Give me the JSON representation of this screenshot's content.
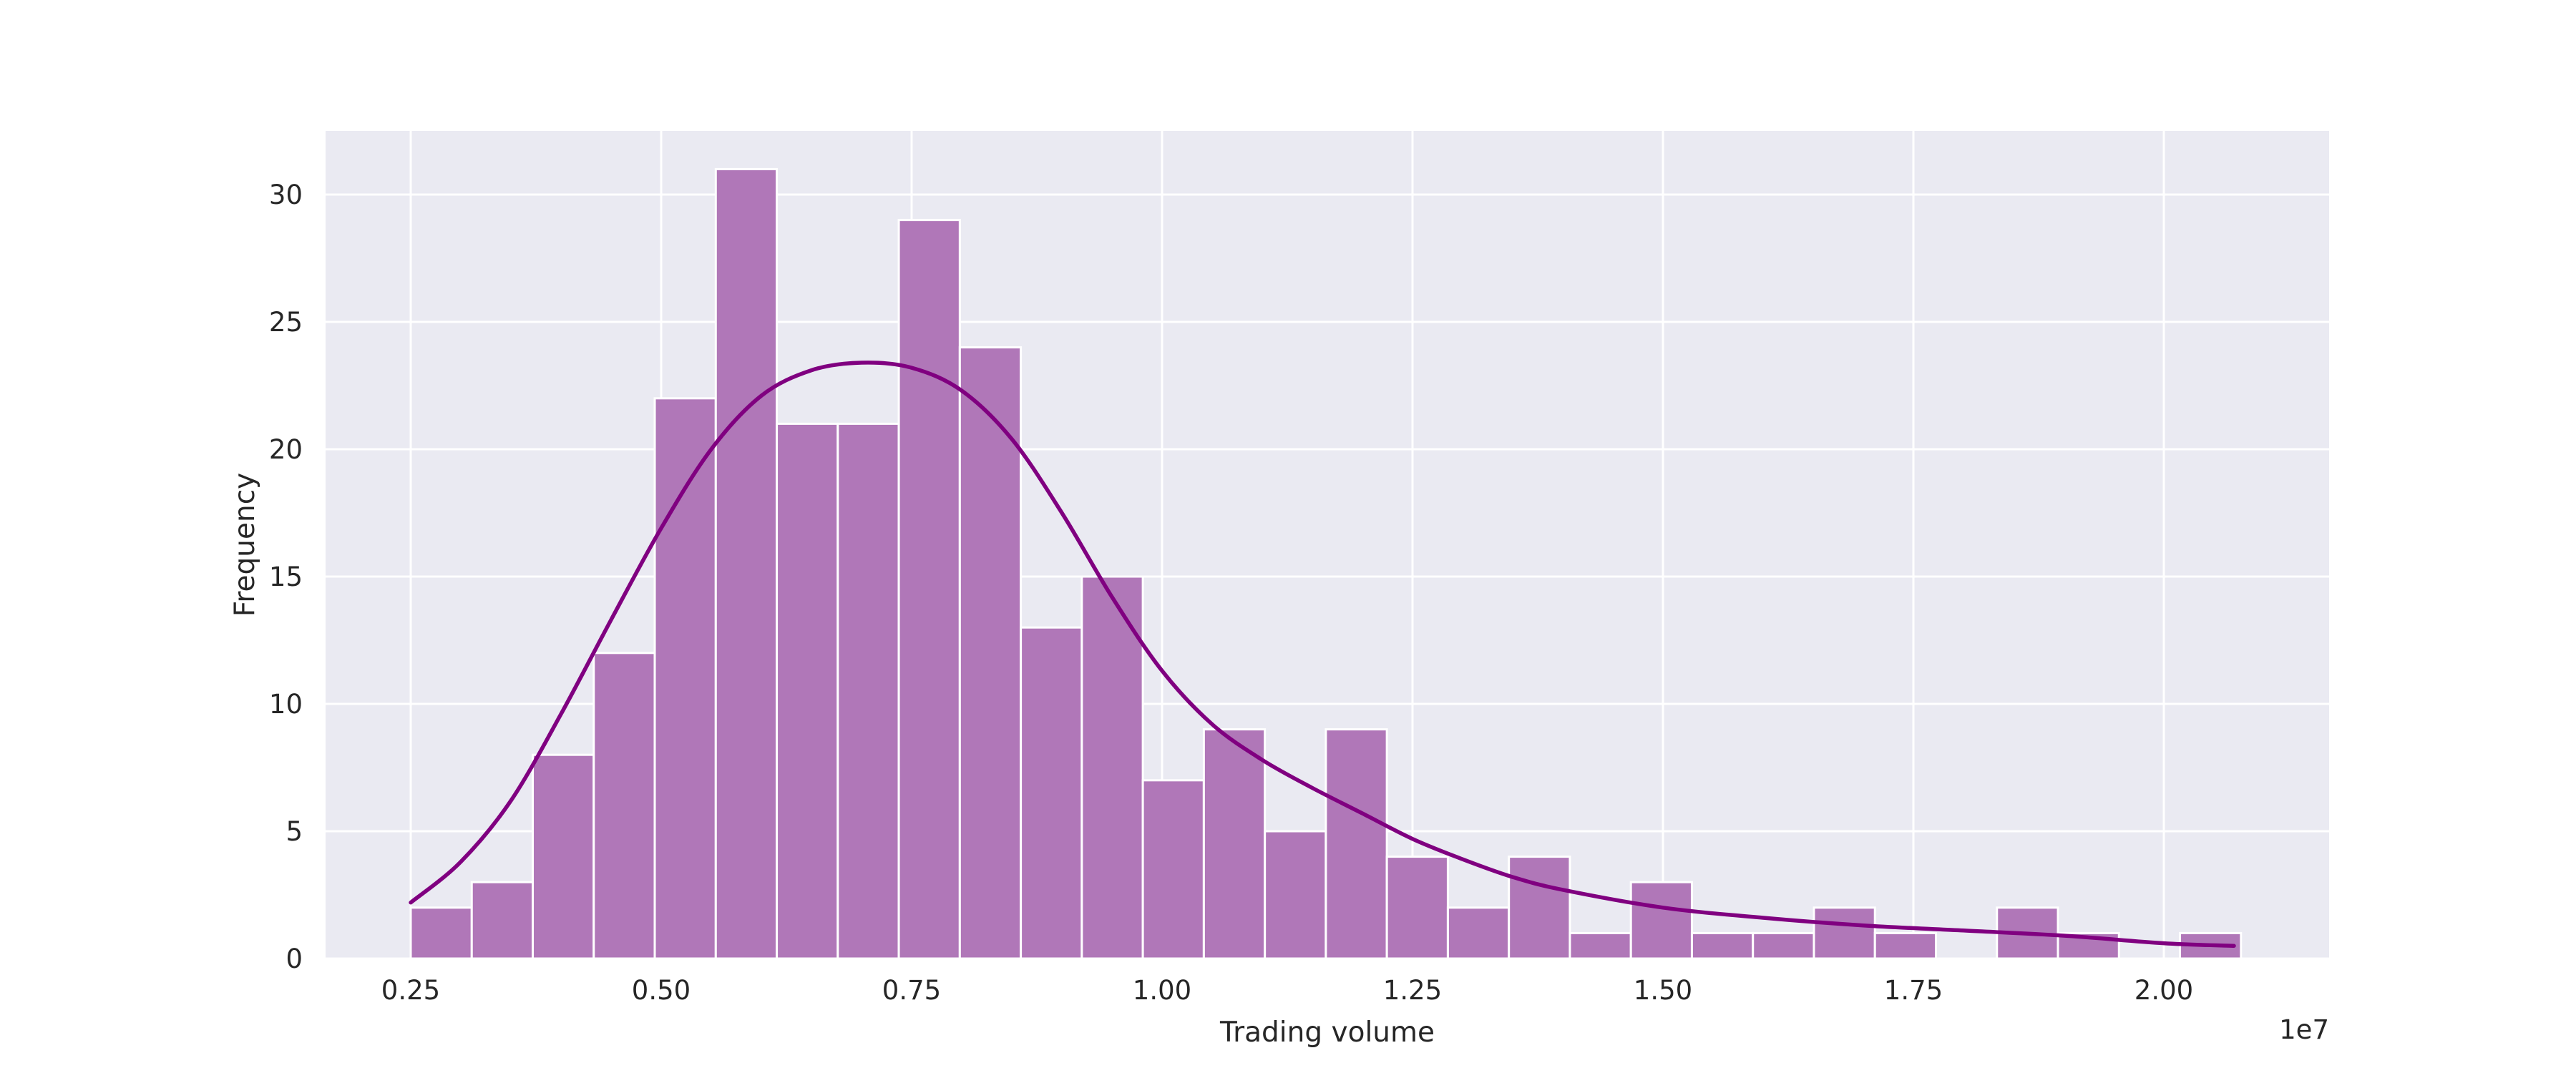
{
  "chart_data": {
    "type": "bar",
    "xlabel": "Trading volume",
    "ylabel": "Frequency",
    "x_offset_label": "1e7",
    "x_unit_multiplier": 10000000,
    "xlim": [
      0.165,
      2.165
    ],
    "ylim": [
      0,
      32.5
    ],
    "x_ticks": [
      {
        "value": 0.25,
        "label": "0.25"
      },
      {
        "value": 0.5,
        "label": "0.50"
      },
      {
        "value": 0.75,
        "label": "0.75"
      },
      {
        "value": 1.0,
        "label": "1.00"
      },
      {
        "value": 1.25,
        "label": "1.25"
      },
      {
        "value": 1.5,
        "label": "1.50"
      },
      {
        "value": 1.75,
        "label": "1.75"
      },
      {
        "value": 2.0,
        "label": "2.00"
      }
    ],
    "y_ticks": [
      {
        "value": 0,
        "label": "0"
      },
      {
        "value": 5,
        "label": "5"
      },
      {
        "value": 10,
        "label": "10"
      },
      {
        "value": 15,
        "label": "15"
      },
      {
        "value": 20,
        "label": "20"
      },
      {
        "value": 25,
        "label": "25"
      },
      {
        "value": 30,
        "label": "30"
      }
    ],
    "grid": true,
    "bin_edges": [
      0.25,
      0.3109,
      0.3718,
      0.4327,
      0.4936,
      0.5545,
      0.6154,
      0.6763,
      0.7372,
      0.7981,
      0.859,
      0.9199,
      0.9808,
      1.0417,
      1.1026,
      1.1635,
      1.2244,
      1.2853,
      1.3462,
      1.4071,
      1.468,
      1.5289,
      1.5898,
      1.6507,
      1.7116,
      1.7725,
      1.8334,
      1.8943,
      1.9552,
      2.0161,
      2.077
    ],
    "counts": [
      2,
      3,
      8,
      12,
      22,
      31,
      21,
      21,
      29,
      24,
      13,
      15,
      7,
      9,
      5,
      9,
      4,
      2,
      4,
      1,
      3,
      1,
      1,
      2,
      1,
      0,
      2,
      1,
      0,
      1
    ],
    "kde": {
      "x": [
        0.25,
        0.3,
        0.35,
        0.4,
        0.45,
        0.5,
        0.55,
        0.6,
        0.65,
        0.7,
        0.75,
        0.8,
        0.85,
        0.9,
        0.95,
        1.0,
        1.05,
        1.1,
        1.15,
        1.2,
        1.25,
        1.3,
        1.35,
        1.4,
        1.5,
        1.6,
        1.7,
        1.8,
        1.9,
        2.0,
        2.07
      ],
      "y": [
        2.2,
        3.8,
        6.2,
        9.6,
        13.3,
        16.9,
        20.0,
        22.1,
        23.1,
        23.4,
        23.2,
        22.3,
        20.4,
        17.5,
        14.2,
        11.3,
        9.2,
        7.8,
        6.7,
        5.7,
        4.7,
        3.9,
        3.2,
        2.7,
        2.0,
        1.6,
        1.3,
        1.1,
        0.9,
        0.6,
        0.5
      ]
    },
    "colors": {
      "background": "#eaeaf2",
      "grid": "#ffffff",
      "bar_fill": "#b077b8",
      "bar_edge": "#ffffff",
      "kde_line": "#800080"
    }
  }
}
